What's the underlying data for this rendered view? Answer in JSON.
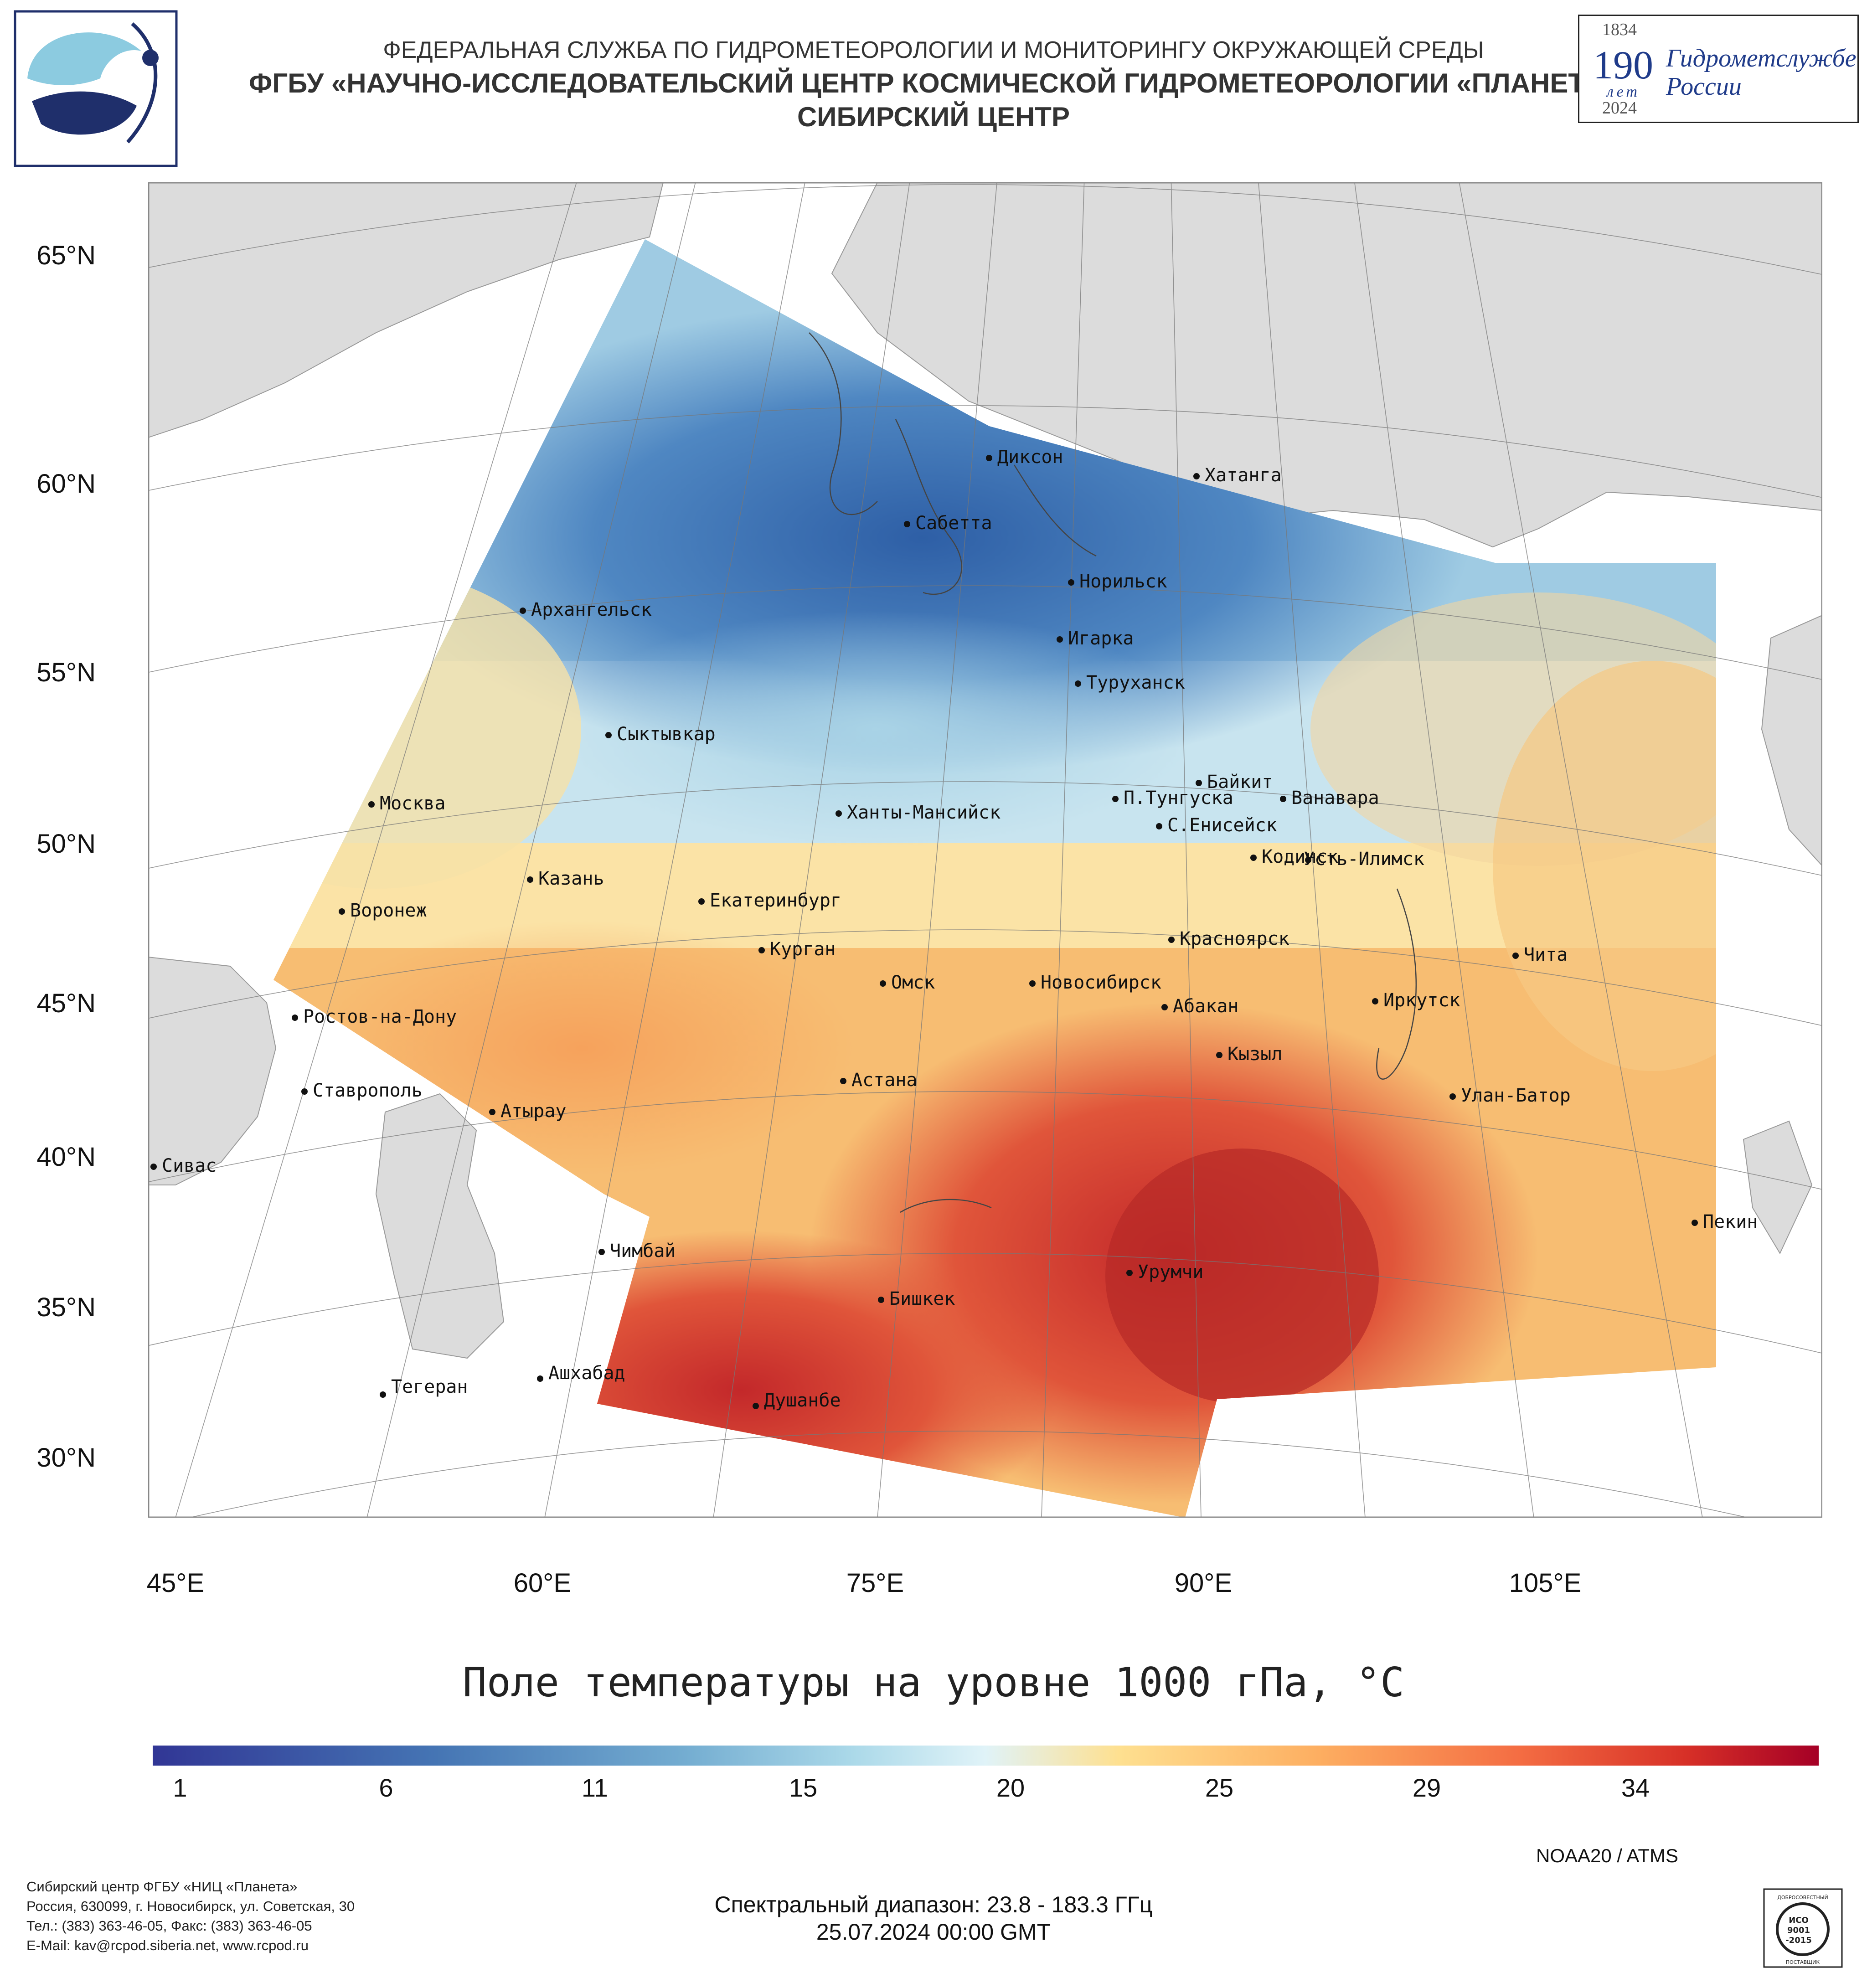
{
  "header": {
    "line1": "ФЕДЕРАЛЬНАЯ СЛУЖБА ПО ГИДРОМЕТЕОРОЛОГИИ И МОНИТОРИНГУ ОКРУЖАЮЩЕЙ СРЕДЫ",
    "line2": "ФГБУ «НАУЧНО-ИССЛЕДОВАТЕЛЬСКИЙ ЦЕНТР КОСМИЧЕСКОЙ ГИДРОМЕТЕОРОЛОГИИ «ПЛАНЕТА»",
    "line3": "СИБИРСКИЙ ЦЕНТР"
  },
  "anniversary": {
    "year_start": "1834",
    "number": "190",
    "let": "лет",
    "org_line1": "Гидрометслужбе",
    "org_line2": "России",
    "year_end": "2024"
  },
  "map": {
    "lat_labels": [
      "65°N",
      "60°N",
      "55°N",
      "50°N",
      "45°N",
      "40°N",
      "35°N",
      "30°N"
    ],
    "lon_labels": [
      "45°E",
      "60°E",
      "75°E",
      "90°E",
      "105°E"
    ],
    "cities": [
      {
        "name": "Диксон"
      },
      {
        "name": "Хатанга"
      },
      {
        "name": "Сабетта"
      },
      {
        "name": "Норильск"
      },
      {
        "name": "Архангельск"
      },
      {
        "name": "Игарка"
      },
      {
        "name": "Туруханск"
      },
      {
        "name": "Сыктывкар"
      },
      {
        "name": "Байкит"
      },
      {
        "name": "П.Тунгуска"
      },
      {
        "name": "Ванавара"
      },
      {
        "name": "Москва"
      },
      {
        "name": "Ханты-Мансийск"
      },
      {
        "name": "С.Енисейск"
      },
      {
        "name": "Кодинск"
      },
      {
        "name": "Усть-Илимск"
      },
      {
        "name": "Казань"
      },
      {
        "name": "Екатеринбург"
      },
      {
        "name": "Воронеж"
      },
      {
        "name": "Красноярск"
      },
      {
        "name": "Курган"
      },
      {
        "name": "Чита"
      },
      {
        "name": "Омск"
      },
      {
        "name": "Новосибирск"
      },
      {
        "name": "Иркутск"
      },
      {
        "name": "Ростов-на-Дону"
      },
      {
        "name": "Абакан"
      },
      {
        "name": "Кызыл"
      },
      {
        "name": "Астана"
      },
      {
        "name": "Ставрополь"
      },
      {
        "name": "Улан-Батор"
      },
      {
        "name": "Атырау"
      },
      {
        "name": "Сивас"
      },
      {
        "name": "Пекин"
      },
      {
        "name": "Чимбай"
      },
      {
        "name": "Урумчи"
      },
      {
        "name": "Бишкек"
      },
      {
        "name": "Ашхабад"
      },
      {
        "name": "Тегеран"
      },
      {
        "name": "Душанбе"
      }
    ]
  },
  "legend": {
    "title": "Поле температуры на уровне 1000 гПа, °C",
    "ticks": [
      "1",
      "6",
      "11",
      "15",
      "20",
      "25",
      "29",
      "34"
    ],
    "colors": {
      "cold": "#313695",
      "cool": "#74add1",
      "mild": "#e0f3f8",
      "neutral": "#fee090",
      "warm": "#f46d43",
      "hot": "#a50026"
    }
  },
  "footer": {
    "satellite": "NOAA20 / ATMS",
    "spectral": "Спектральный диапазон: 23.8 - 183.3 ГГц",
    "datetime": "25.07.2024 00:00 GMT",
    "address": [
      "Сибирский центр ФГБУ «НИЦ «Планета»",
      "Россия, 630099, г. Новосибирск, ул. Советская, 30",
      "Тел.: (383) 363-46-05, Факс: (383) 363-46-05",
      "E-Mail: kav@rcpod.siberia.net, www.rcpod.ru"
    ],
    "iso": {
      "top": "ДОБРОСОВЕСТНЫЙ",
      "mid1": "ИСО",
      "mid2": "9001",
      "mid3": "-2015",
      "bottom": "ПОСТАВЩИК"
    }
  }
}
